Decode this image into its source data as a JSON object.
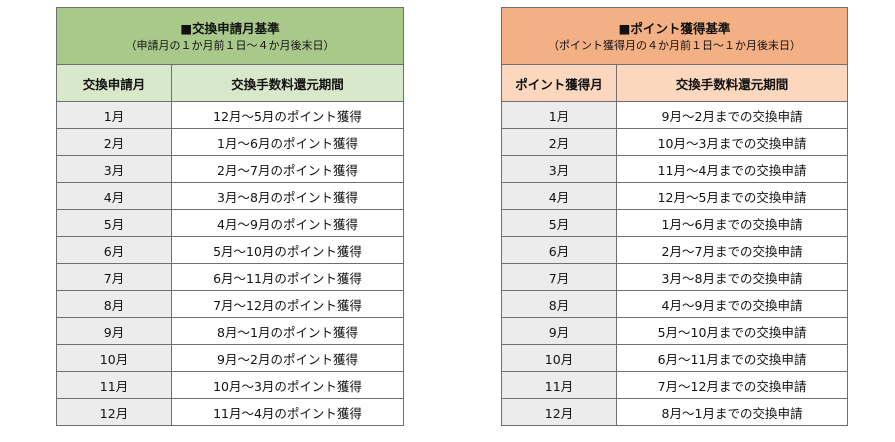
{
  "left_table": {
    "title": "■交換申請月基準",
    "subtitle": "（申請月の１か月前１日～４か月後末日）",
    "col_month": "交換申請月",
    "col_period": "交換手数料還元期間",
    "rows": [
      {
        "month": "1月",
        "period": "12月～5月のポイント獲得"
      },
      {
        "month": "2月",
        "period": "1月～6月のポイント獲得"
      },
      {
        "month": "3月",
        "period": "2月～7月のポイント獲得"
      },
      {
        "month": "4月",
        "period": "3月～8月のポイント獲得"
      },
      {
        "month": "5月",
        "period": "4月～9月のポイント獲得"
      },
      {
        "month": "6月",
        "period": "5月～10月のポイント獲得"
      },
      {
        "month": "7月",
        "period": "6月～11月のポイント獲得"
      },
      {
        "month": "8月",
        "period": "7月～12月のポイント獲得"
      },
      {
        "month": "9月",
        "period": "8月～1月のポイント獲得"
      },
      {
        "month": "10月",
        "period": "9月～2月のポイント獲得"
      },
      {
        "month": "11月",
        "period": "10月～3月のポイント獲得"
      },
      {
        "month": "12月",
        "period": "11月～4月のポイント獲得"
      }
    ]
  },
  "right_table": {
    "title": "■ポイント獲得基準",
    "subtitle": "（ポイント獲得月の４か月前１日～１か月後末日）",
    "col_month": "ポイント獲得月",
    "col_period": "交換手数料還元期間",
    "rows": [
      {
        "month": "1月",
        "period": "9月～2月までの交換申請"
      },
      {
        "month": "2月",
        "period": "10月～3月までの交換申請"
      },
      {
        "month": "3月",
        "period": "11月～4月までの交換申請"
      },
      {
        "month": "4月",
        "period": "12月～5月までの交換申請"
      },
      {
        "month": "5月",
        "period": "1月～6月までの交換申請"
      },
      {
        "month": "6月",
        "period": "2月～7月までの交換申請"
      },
      {
        "month": "7月",
        "period": "3月～8月までの交換申請"
      },
      {
        "month": "8月",
        "period": "4月～9月までの交換申請"
      },
      {
        "month": "9月",
        "period": "5月～10月までの交換申請"
      },
      {
        "month": "10月",
        "period": "6月～11月までの交換申請"
      },
      {
        "month": "11月",
        "period": "7月～12月までの交換申請"
      },
      {
        "month": "12月",
        "period": "8月～1月までの交換申請"
      }
    ]
  }
}
